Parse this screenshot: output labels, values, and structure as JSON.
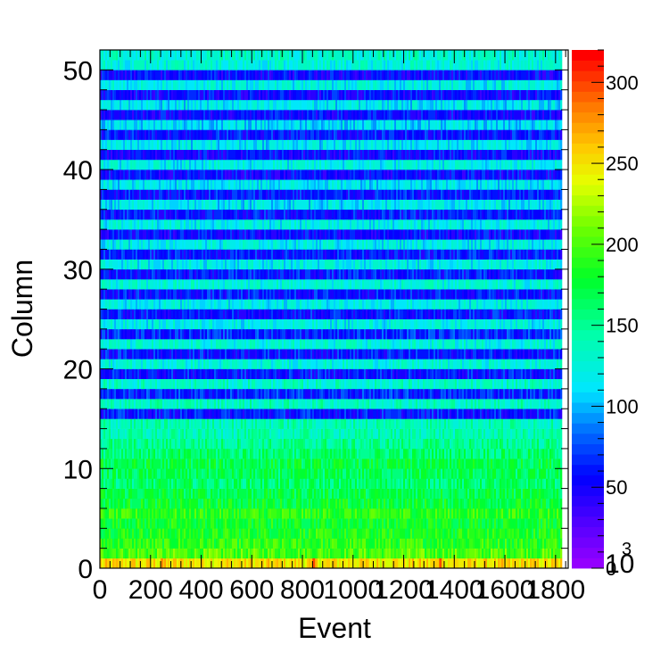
{
  "chart_data": {
    "type": "heatmap",
    "title": "",
    "xlabel": "Event",
    "ylabel": "Column",
    "xlim": [
      0,
      1850
    ],
    "ylim": [
      0,
      52
    ],
    "x_bins": 1850,
    "y_bins": 52,
    "x_ticks": [
      0,
      200,
      400,
      600,
      800,
      1000,
      1200,
      1400,
      1600,
      1800
    ],
    "x_tick_labels": [
      "0",
      "200",
      "400",
      "600",
      "800",
      "1000",
      "1200",
      "1400",
      "1600",
      "1800"
    ],
    "y_ticks": [
      0,
      10,
      20,
      30,
      40,
      50
    ],
    "y_tick_labels": [
      "0",
      "10",
      "20",
      "30",
      "40",
      "50"
    ],
    "z_range": [
      0,
      320
    ],
    "z_ticks": [
      0,
      50,
      100,
      150,
      200,
      250,
      300
    ],
    "z_tick_labels": [
      "0",
      "50",
      "100",
      "150",
      "200",
      "250",
      "300"
    ],
    "z_exponent_label": "10",
    "z_exponent_power": "3",
    "colorbar_position": "right",
    "grid": false,
    "row_mean_values": [
      250,
      200,
      190,
      185,
      180,
      190,
      175,
      170,
      160,
      165,
      170,
      160,
      150,
      140,
      140,
      60,
      135,
      65,
      130,
      60,
      125,
      60,
      125,
      65,
      120,
      60,
      120,
      60,
      125,
      60,
      120,
      60,
      120,
      55,
      120,
      60,
      115,
      60,
      115,
      55,
      120,
      55,
      115,
      60,
      110,
      55,
      115,
      55,
      120,
      55,
      125,
      130
    ],
    "noise_amplitude": 20,
    "spikes": [
      {
        "x": 840,
        "y": 0,
        "value": 300
      },
      {
        "x": 1340,
        "y": 0,
        "value": 300
      },
      {
        "x": 240,
        "y": 0,
        "value": 280
      }
    ]
  }
}
